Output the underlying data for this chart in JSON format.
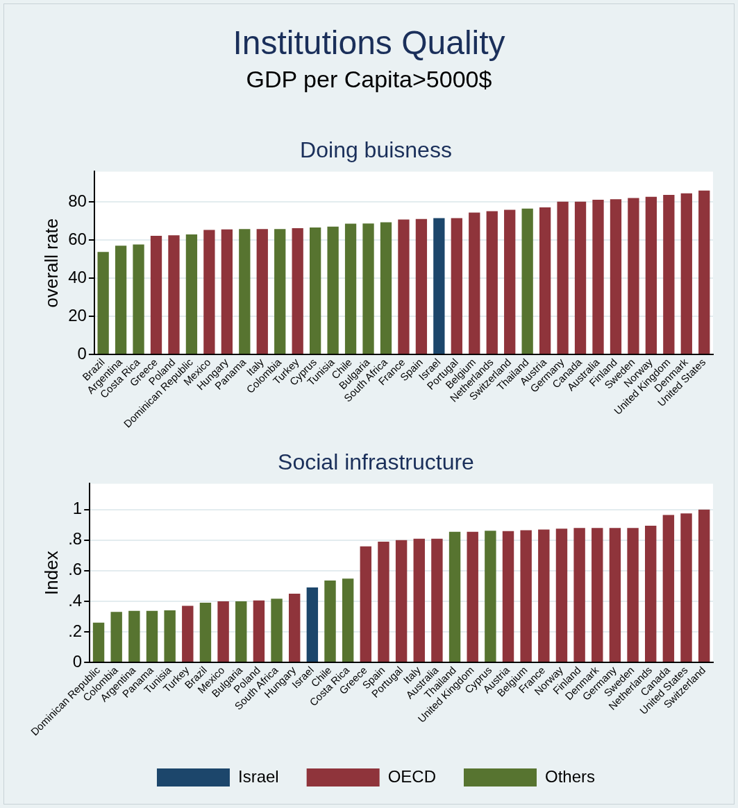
{
  "chart_data": [
    {
      "type": "other",
      "title": "Institutions Quality",
      "subtitle": "GDP per Capita>5000$"
    },
    {
      "type": "bar",
      "title": "Doing buisness",
      "ylabel": "overall rate",
      "stacked": true,
      "grid": "y",
      "legend": false,
      "categories": [
        "Brazil",
        "Argentina",
        "Costa Rica",
        "Greece",
        "Poland",
        "Dominican Republic",
        "Mexico",
        "Hungary",
        "Panama",
        "Italy",
        "Colombia",
        "Turkey",
        "Cyprus",
        "Tunisia",
        "Chile",
        "Bulgaria",
        "South Africa",
        "France",
        "Spain",
        "Israel",
        "Portugal",
        "Belgium",
        "Netherlands",
        "Switzerland",
        "Thailand",
        "Austria",
        "Germany",
        "Canada",
        "Australia",
        "Finland",
        "Sweden",
        "Norway",
        "United Kingdom",
        "Denmark",
        "United States"
      ],
      "ylim": [
        0,
        96
      ],
      "yticks": [
        0,
        20,
        40,
        60,
        80
      ],
      "series": [
        {
          "color": "#1c466b",
          "values": [
            null,
            null,
            null,
            null,
            null,
            null,
            null,
            null,
            null,
            null,
            null,
            null,
            null,
            null,
            null,
            null,
            null,
            null,
            null,
            71.6,
            null,
            null,
            null,
            null,
            null,
            null,
            null,
            null,
            null,
            null,
            null,
            null,
            null,
            null,
            null
          ]
        },
        {
          "color": "#8f343b",
          "values": [
            null,
            null,
            null,
            62.3,
            62.5,
            null,
            65.4,
            65.6,
            null,
            65.8,
            null,
            66.3,
            null,
            null,
            null,
            null,
            null,
            70.8,
            71.1,
            null,
            71.6,
            74.5,
            75.2,
            75.9,
            null,
            77.2,
            80.2,
            80.2,
            81.2,
            81.5,
            82.1,
            82.8,
            83.8,
            84.6,
            86.0
          ]
        },
        {
          "color": "#577430",
          "values": [
            53.8,
            57.1,
            57.7,
            null,
            null,
            63.0,
            null,
            null,
            65.8,
            null,
            65.8,
            null,
            66.6,
            67.1,
            68.6,
            68.7,
            69.4,
            null,
            null,
            null,
            null,
            null,
            null,
            null,
            76.6,
            null,
            null,
            null,
            null,
            null,
            null,
            null,
            null,
            null,
            null
          ]
        }
      ]
    },
    {
      "type": "bar",
      "title": "Social infrastructure",
      "ylabel": "Index",
      "stacked": true,
      "grid": "y",
      "legend": "bottom",
      "categories": [
        "Dominican Republic",
        "Colombia",
        "Argentina",
        "Panama",
        "Tunisia",
        "Turkey",
        "Brazil",
        "Mexico",
        "Bulgaria",
        "Poland",
        "South Africa",
        "Hungary",
        "Israel",
        "Chile",
        "Costa Rica",
        "Greece",
        "Spain",
        "Portugal",
        "Italy",
        "Australia",
        "Thailand",
        "United Kingdom",
        "Cyprus",
        "Austria",
        "Belgium",
        "France",
        "Norway",
        "Finland",
        "Denmark",
        "Germany",
        "Sweden",
        "Netherlands",
        "Canada",
        "United States",
        "Switzerland"
      ],
      "ylim": [
        0,
        1.17
      ],
      "yticks": [
        0,
        {
          "value": 0.2,
          "label": ".2"
        },
        {
          "value": 0.4,
          "label": ".4"
        },
        {
          "value": 0.6,
          "label": ".6"
        },
        {
          "value": 0.8,
          "label": ".8"
        },
        1
      ],
      "series": [
        {
          "name": "Israel",
          "color": "#1c466b",
          "values": [
            null,
            null,
            null,
            null,
            null,
            null,
            null,
            null,
            null,
            null,
            null,
            null,
            0.49,
            null,
            null,
            null,
            null,
            null,
            null,
            null,
            null,
            null,
            null,
            null,
            null,
            null,
            null,
            null,
            null,
            null,
            null,
            null,
            null,
            null,
            null
          ]
        },
        {
          "name": "OECD",
          "color": "#8f343b",
          "values": [
            null,
            null,
            null,
            null,
            null,
            0.37,
            null,
            0.4,
            null,
            0.405,
            null,
            0.45,
            null,
            null,
            null,
            0.76,
            0.79,
            0.8,
            0.81,
            0.81,
            null,
            0.855,
            null,
            0.86,
            0.865,
            0.87,
            0.875,
            0.88,
            0.88,
            0.88,
            0.88,
            0.895,
            0.965,
            0.975,
            1.0
          ]
        },
        {
          "name": "Others",
          "color": "#577430",
          "values": [
            0.26,
            0.33,
            0.337,
            0.337,
            0.34,
            null,
            0.39,
            null,
            0.4,
            null,
            0.417,
            null,
            null,
            0.536,
            0.548,
            null,
            null,
            null,
            null,
            null,
            0.855,
            null,
            0.862,
            null,
            null,
            null,
            null,
            null,
            null,
            null,
            null,
            null,
            null,
            null,
            null
          ]
        }
      ]
    }
  ]
}
